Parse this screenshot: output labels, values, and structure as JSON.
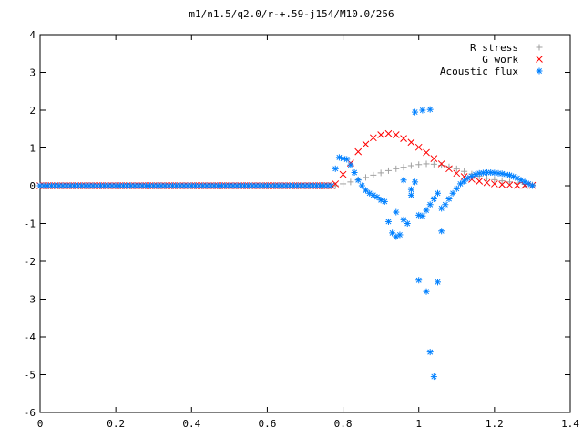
{
  "chart_data": {
    "type": "scatter",
    "title": "m1/n1.5/q2.0/r-+.59-j154/M10.0/256",
    "xlabel": "",
    "ylabel": "",
    "xlim": [
      0,
      1.4
    ],
    "ylim": [
      -6,
      4
    ],
    "x_ticks": [
      "0",
      "0.2",
      "0.4",
      "0.6",
      "0.8",
      "1",
      "1.2",
      "1.4"
    ],
    "y_ticks": [
      "4",
      "3",
      "2",
      "1",
      "0",
      "-1",
      "-2",
      "-3",
      "-4",
      "-5",
      "-6"
    ],
    "grid": false,
    "legend_position": "top-right",
    "series": [
      {
        "name": "R stress",
        "marker": "plus",
        "color": "#a0a0a0",
        "x": [
          0.78,
          0.8,
          0.82,
          0.84,
          0.86,
          0.88,
          0.9,
          0.92,
          0.94,
          0.96,
          0.98,
          1.0,
          1.02,
          1.04,
          1.06,
          1.08,
          1.1,
          1.12,
          1.14,
          1.16,
          1.18,
          1.2,
          1.22,
          1.24,
          1.26,
          1.28,
          1.3
        ],
        "y": [
          0.0,
          0.05,
          0.1,
          0.16,
          0.22,
          0.28,
          0.34,
          0.4,
          0.45,
          0.49,
          0.53,
          0.56,
          0.58,
          0.57,
          0.54,
          0.5,
          0.45,
          0.38,
          0.31,
          0.25,
          0.2,
          0.16,
          0.13,
          0.1,
          0.07,
          0.04,
          0.02
        ]
      },
      {
        "name": "G work",
        "marker": "cross",
        "color": "#ff0000",
        "x": [
          0.78,
          0.8,
          0.82,
          0.84,
          0.86,
          0.88,
          0.9,
          0.92,
          0.94,
          0.96,
          0.98,
          1.0,
          1.02,
          1.04,
          1.06,
          1.08,
          1.1,
          1.12,
          1.14,
          1.16,
          1.18,
          1.2,
          1.22,
          1.24,
          1.26,
          1.28,
          1.3
        ],
        "y": [
          0.05,
          0.3,
          0.6,
          0.9,
          1.1,
          1.27,
          1.35,
          1.38,
          1.35,
          1.25,
          1.15,
          1.02,
          0.88,
          0.72,
          0.58,
          0.45,
          0.33,
          0.24,
          0.17,
          0.12,
          0.08,
          0.05,
          0.03,
          0.02,
          0.01,
          0.01,
          0.01
        ]
      },
      {
        "name": "Acoustic flux",
        "marker": "star",
        "color": "#0080ff",
        "x": [
          0.78,
          0.79,
          0.8,
          0.81,
          0.82,
          0.83,
          0.84,
          0.85,
          0.86,
          0.87,
          0.88,
          0.89,
          0.9,
          0.91,
          0.92,
          0.93,
          0.94,
          0.95,
          0.96,
          0.97,
          0.98,
          0.99,
          1.0,
          1.01,
          1.02,
          1.03,
          1.04,
          1.05,
          1.06,
          1.07,
          1.08,
          1.09,
          1.1,
          1.11,
          1.12,
          1.13,
          1.14,
          1.15,
          1.16,
          1.17,
          1.18,
          1.19,
          1.2,
          1.21,
          1.22,
          1.23,
          1.24,
          1.25,
          1.26,
          1.27,
          1.28,
          1.29,
          1.3,
          0.99,
          1.01,
          1.03,
          1.0,
          1.02,
          1.05,
          1.04,
          1.03,
          1.06,
          0.94,
          0.96,
          0.98
        ],
        "y": [
          0.45,
          0.75,
          0.72,
          0.7,
          0.55,
          0.35,
          0.15,
          0.0,
          -0.12,
          -0.2,
          -0.25,
          -0.3,
          -0.38,
          -0.42,
          -0.95,
          -1.25,
          -1.35,
          -1.3,
          -0.9,
          -1.0,
          -0.1,
          0.1,
          -0.78,
          -0.8,
          -0.65,
          -0.5,
          -0.35,
          -0.2,
          -0.6,
          -0.5,
          -0.35,
          -0.2,
          -0.08,
          0.05,
          0.12,
          0.2,
          0.25,
          0.3,
          0.33,
          0.34,
          0.35,
          0.35,
          0.34,
          0.33,
          0.32,
          0.3,
          0.28,
          0.24,
          0.2,
          0.15,
          0.1,
          0.05,
          0.0,
          1.95,
          2.0,
          2.02,
          -2.5,
          -2.8,
          -2.55,
          -5.05,
          -4.4,
          -1.2,
          -0.7,
          0.15,
          -0.25
        ]
      }
    ]
  }
}
